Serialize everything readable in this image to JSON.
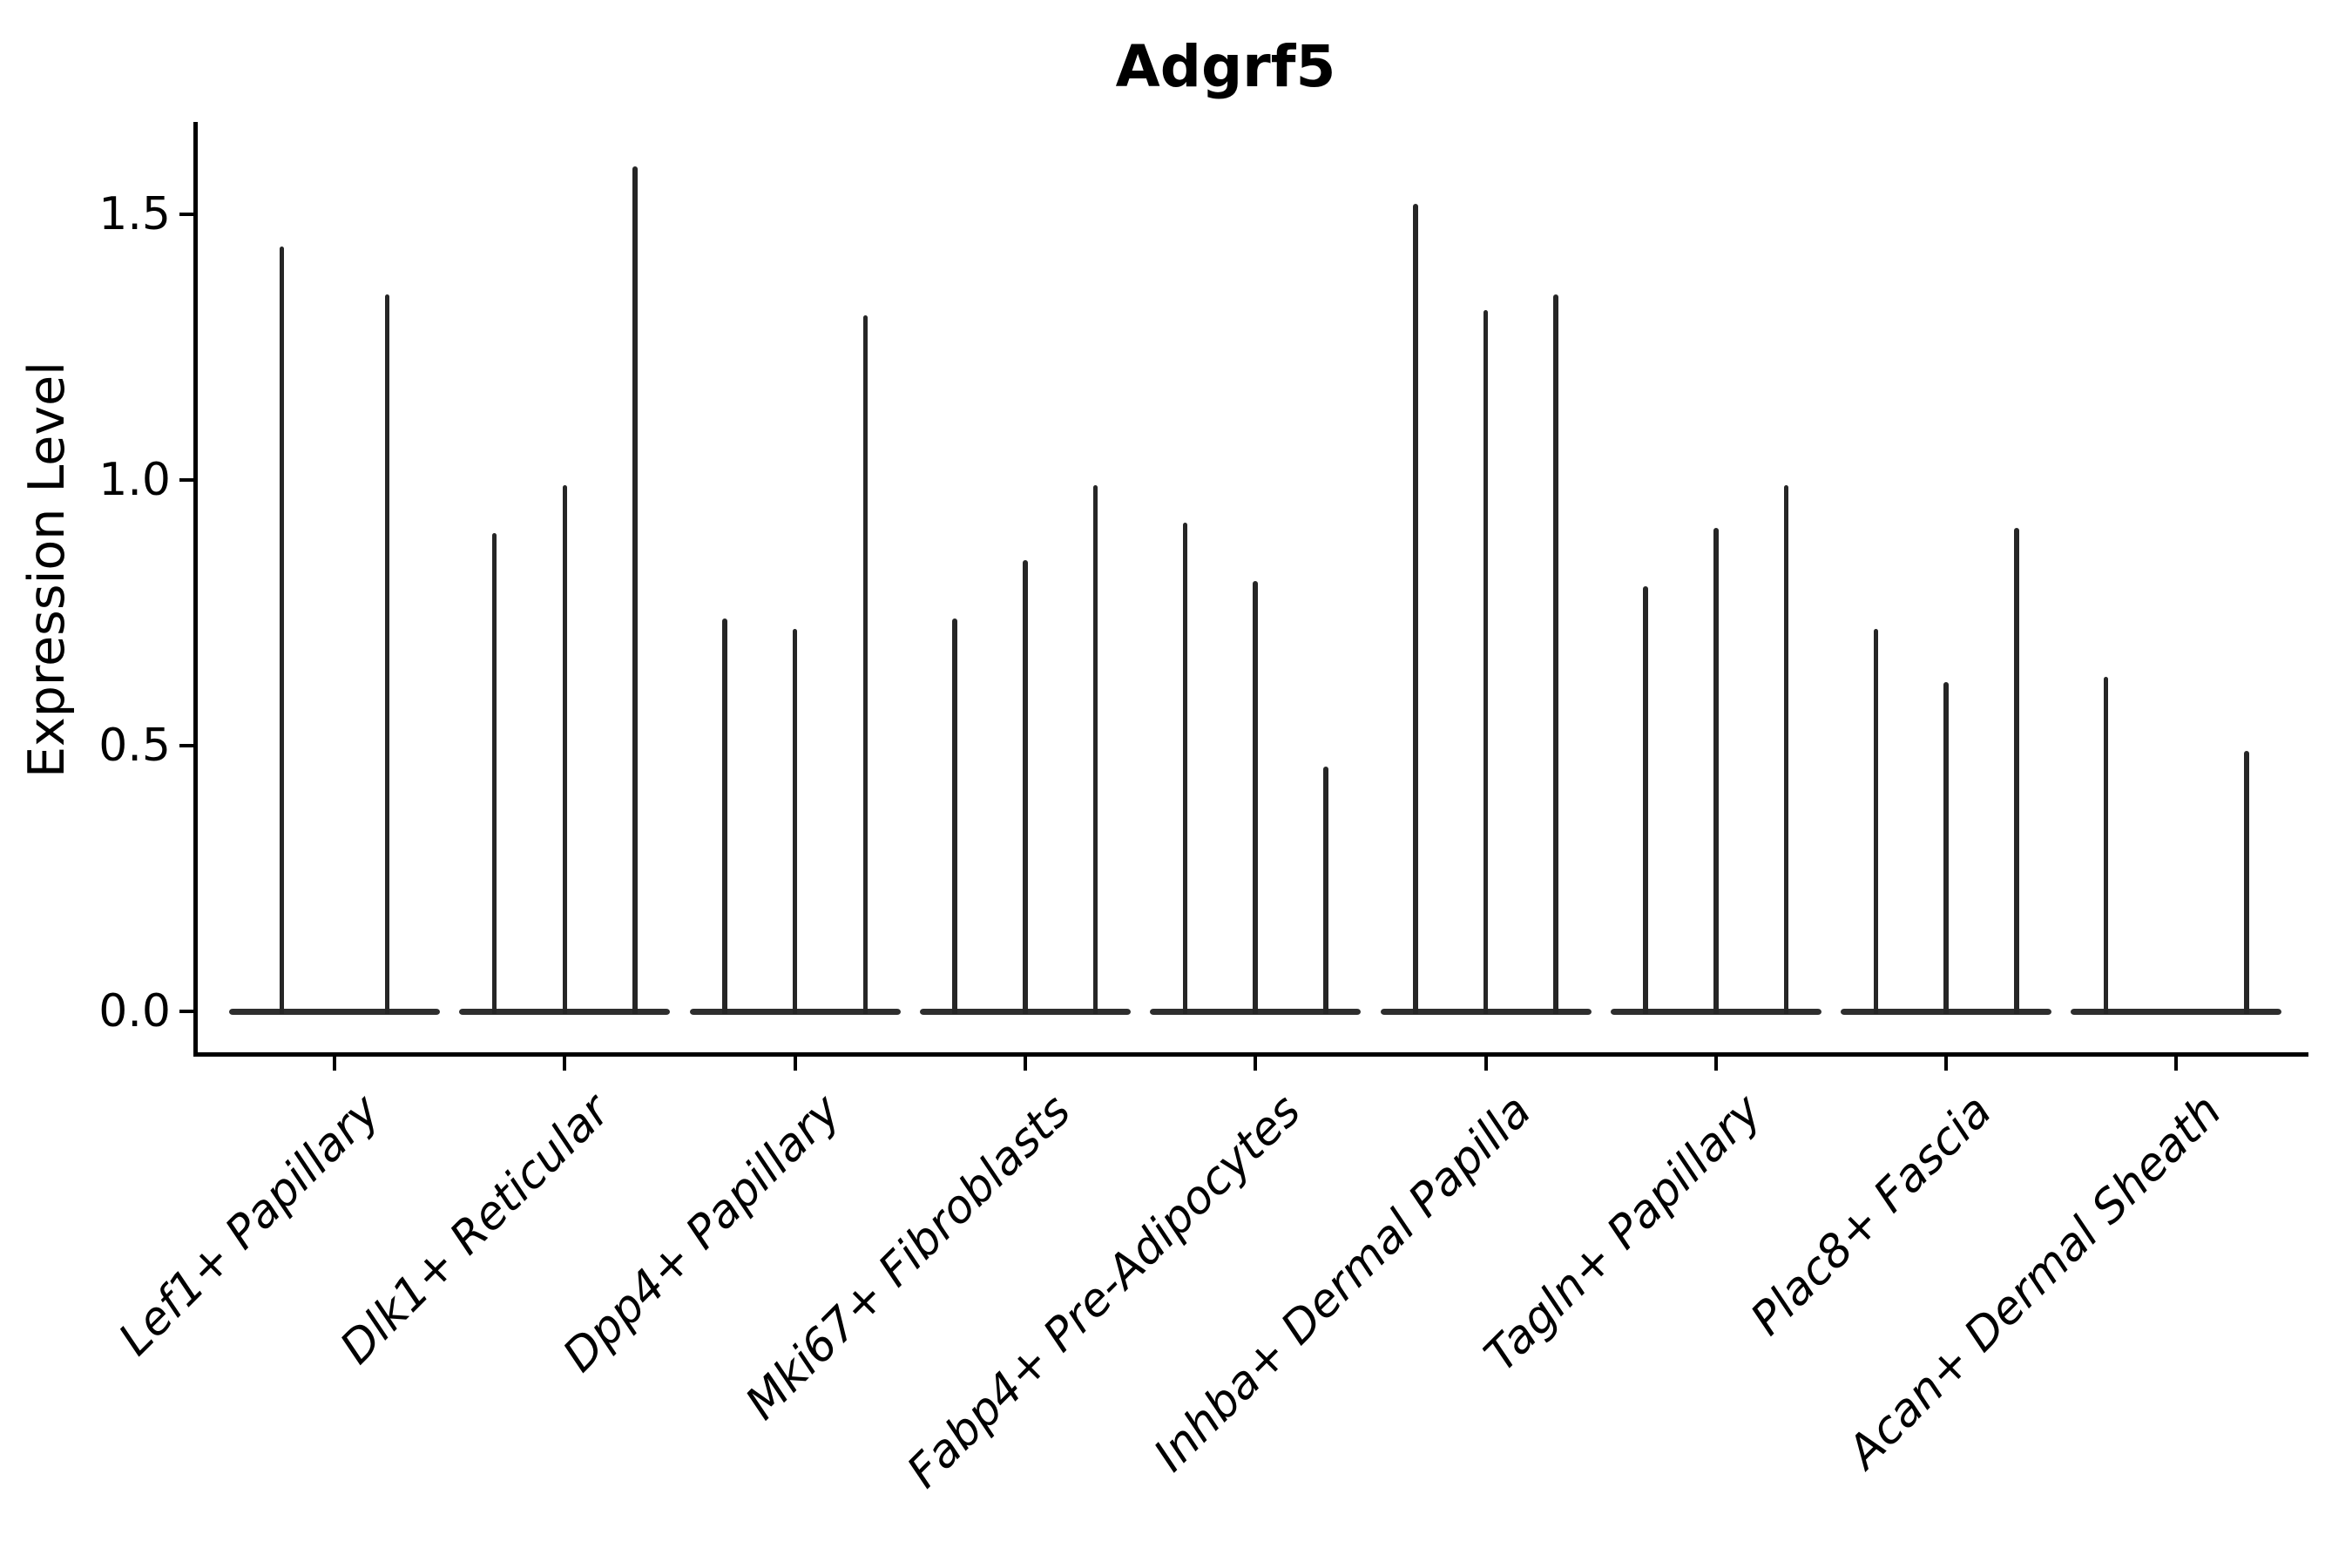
{
  "figure": {
    "title": "Adgrf5",
    "ylabel": "Expression Level",
    "background_color": "#ffffff",
    "axis_color": "#000000",
    "violin_color": "#262626"
  },
  "chart_data": {
    "type": "violin",
    "title": "Adgrf5",
    "xlabel": "",
    "ylabel": "Expression Level",
    "ylim": [
      0,
      1.67
    ],
    "ytick_labels": [
      "0.0",
      "0.5",
      "1.0",
      "1.5"
    ],
    "ytick_values": [
      0.0,
      0.5,
      1.0,
      1.5
    ],
    "grid": false,
    "legend": null,
    "style_note": "needle-thin violin plot; every violin collapses to a vertical spike rising from a flat baseline at expression 0; maxima = top expression value of each spike, null = completely flat violin",
    "categories": [
      "Lef1+ Papillary",
      "Dlk1+ Reticular",
      "Dpp4+ Papillary",
      "Mki67+ Fibroblasts",
      "Fabp4+ Pre-Adipocytes",
      "Inhba+ Dermal Papilla",
      "Tagln+ Papillary",
      "Plac8+ Fascia",
      "Acan+ Dermal Sheath"
    ],
    "violins": [
      {
        "category": "Lef1+ Papillary",
        "maxima": [
          1.44,
          1.35
        ]
      },
      {
        "category": "Dlk1+ Reticular",
        "maxima": [
          0.9,
          0.99,
          1.59
        ]
      },
      {
        "category": "Dpp4+ Papillary",
        "maxima": [
          0.74,
          0.72,
          1.31
        ]
      },
      {
        "category": "Mki67+ Fibroblasts",
        "maxima": [
          0.74,
          0.85,
          0.99
        ]
      },
      {
        "category": "Fabp4+ Pre-Adipocytes",
        "maxima": [
          0.92,
          0.81,
          0.46
        ]
      },
      {
        "category": "Inhba+ Dermal Papilla",
        "maxima": [
          1.52,
          1.32,
          1.35
        ]
      },
      {
        "category": "Tagln+ Papillary",
        "maxima": [
          0.8,
          0.91,
          0.99
        ]
      },
      {
        "category": "Plac8+ Fascia",
        "maxima": [
          0.72,
          0.62,
          0.91
        ]
      },
      {
        "category": "Acan+ Dermal Sheath",
        "maxima": [
          0.63,
          null,
          0.49
        ]
      }
    ]
  }
}
